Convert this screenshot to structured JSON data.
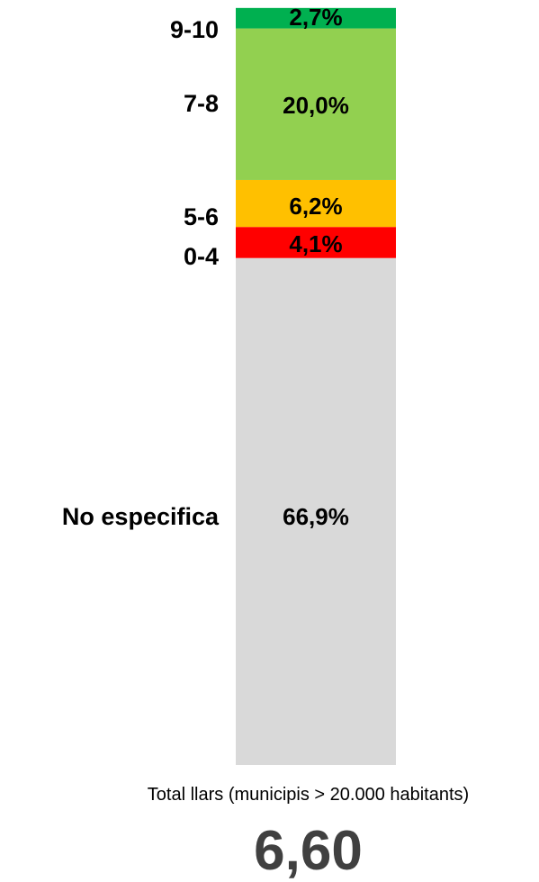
{
  "chart_data": {
    "type": "bar",
    "stacked": true,
    "orientation": "vertical",
    "categories": [
      "Total llars (municipis > 20.000 habitants)"
    ],
    "series": [
      {
        "name": "No especifica",
        "values": [
          66.9
        ],
        "label": "66,9%",
        "color": "#d9d9d9"
      },
      {
        "name": "0-4",
        "values": [
          4.1
        ],
        "label": "4,1%",
        "color": "#ff0000"
      },
      {
        "name": "5-6",
        "values": [
          6.2
        ],
        "label": "6,2%",
        "color": "#ffc000"
      },
      {
        "name": "7-8",
        "values": [
          20.0
        ],
        "label": "20,0%",
        "color": "#92d050"
      },
      {
        "name": "9-10",
        "values": [
          2.7
        ],
        "label": "2,7%",
        "color": "#00b050"
      }
    ],
    "total": 100,
    "summary_value": "6,60",
    "legend": "left, next to segments",
    "grid": false
  }
}
